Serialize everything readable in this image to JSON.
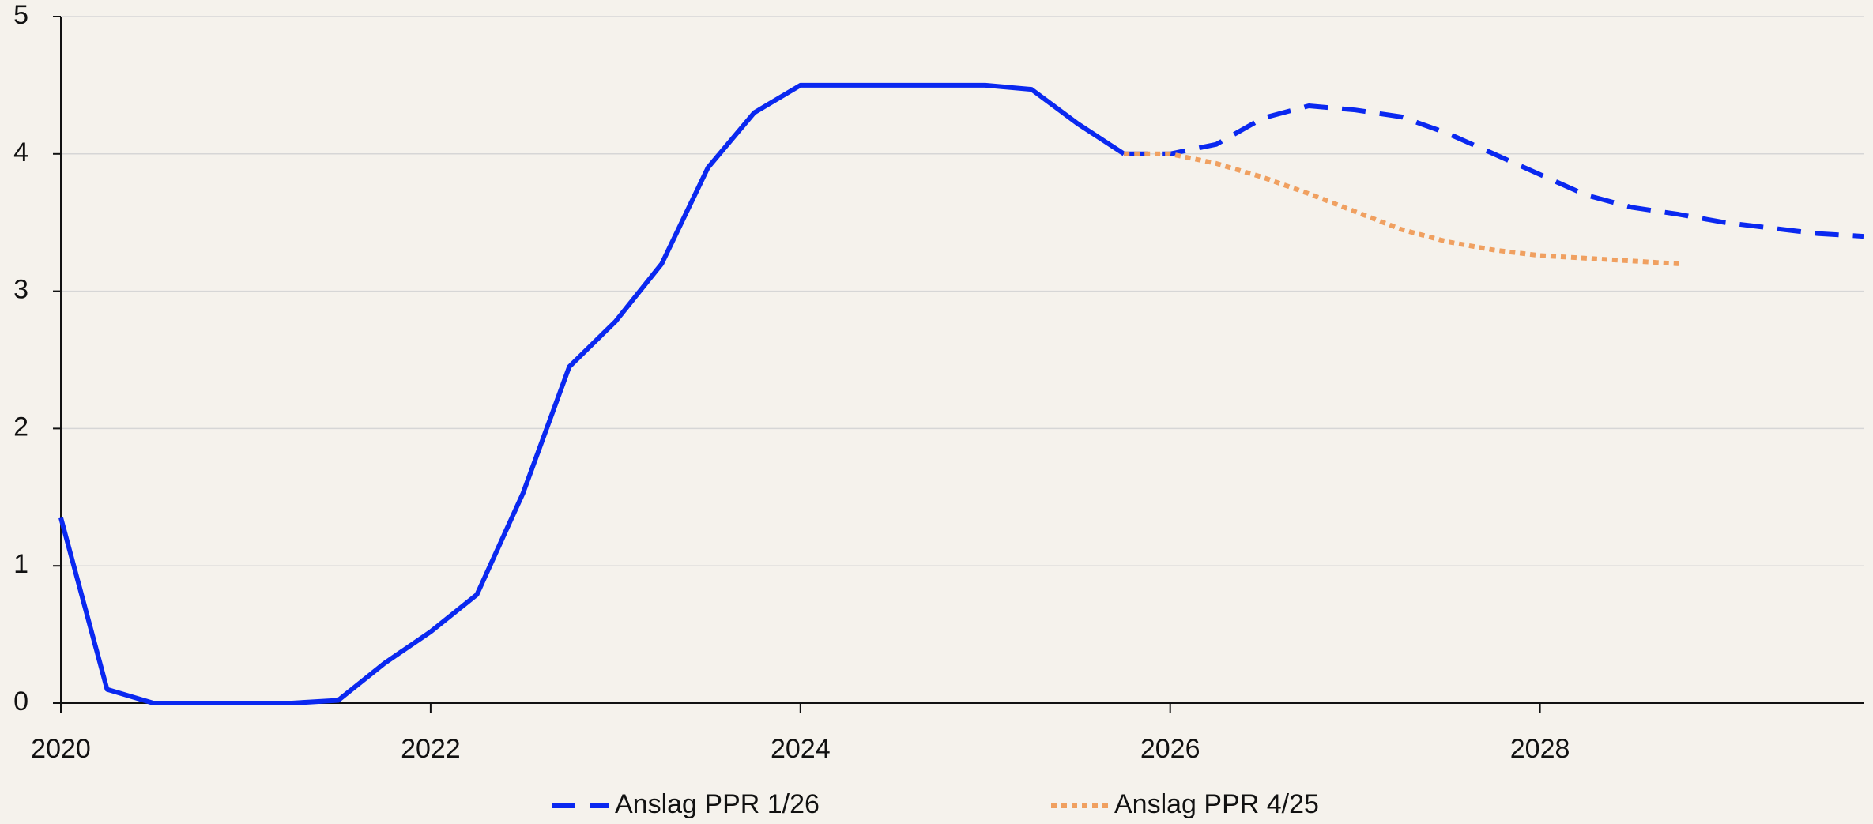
{
  "chart_data": {
    "type": "line",
    "xlim": [
      2020,
      2029.75
    ],
    "xticks": [
      2020,
      2022,
      2024,
      2026,
      2028
    ],
    "ylim": [
      0,
      5
    ],
    "yticks": [
      0,
      1,
      2,
      3,
      4,
      5
    ],
    "grid": true,
    "legend": "bottom",
    "series": [
      {
        "color": "#0a28f0",
        "line_style": "solid",
        "x": [
          2020,
          2020.25,
          2020.5,
          2020.75,
          2021,
          2021.25,
          2021.5,
          2021.75,
          2022,
          2022.25,
          2022.5,
          2022.75,
          2023,
          2023.25,
          2023.5,
          2023.75,
          2024,
          2024.25,
          2024.5,
          2024.75,
          2025,
          2025.25,
          2025.5,
          2025.75
        ],
        "values": [
          1.35,
          0.1,
          0,
          0,
          0,
          0,
          0.02,
          0.29,
          0.52,
          0.79,
          1.53,
          2.45,
          2.78,
          3.2,
          3.9,
          4.3,
          4.5,
          4.5,
          4.5,
          4.5,
          4.5,
          4.47,
          4.22,
          4.0
        ]
      },
      {
        "name": "Anslag PPR 1/26",
        "color": "#0a28f0",
        "line_style": "dashed",
        "x": [
          2025.75,
          2026,
          2026.25,
          2026.5,
          2026.75,
          2027,
          2027.25,
          2027.5,
          2027.75,
          2028,
          2028.25,
          2028.5,
          2028.75,
          2029,
          2029.25,
          2029.5,
          2029.75
        ],
        "values": [
          4.0,
          4.0,
          4.07,
          4.26,
          4.35,
          4.32,
          4.27,
          4.15,
          4.0,
          3.85,
          3.7,
          3.61,
          3.56,
          3.5,
          3.46,
          3.42,
          3.4
        ]
      },
      {
        "name": "Anslag PPR 4/25",
        "color": "#f0a060",
        "line_style": "dotted",
        "x": [
          2025.75,
          2026,
          2026.25,
          2026.5,
          2026.75,
          2027,
          2027.25,
          2027.5,
          2027.75,
          2028,
          2028.25,
          2028.5,
          2028.75
        ],
        "values": [
          4.0,
          4.0,
          3.93,
          3.83,
          3.71,
          3.58,
          3.45,
          3.36,
          3.3,
          3.26,
          3.24,
          3.22,
          3.2
        ]
      }
    ]
  }
}
